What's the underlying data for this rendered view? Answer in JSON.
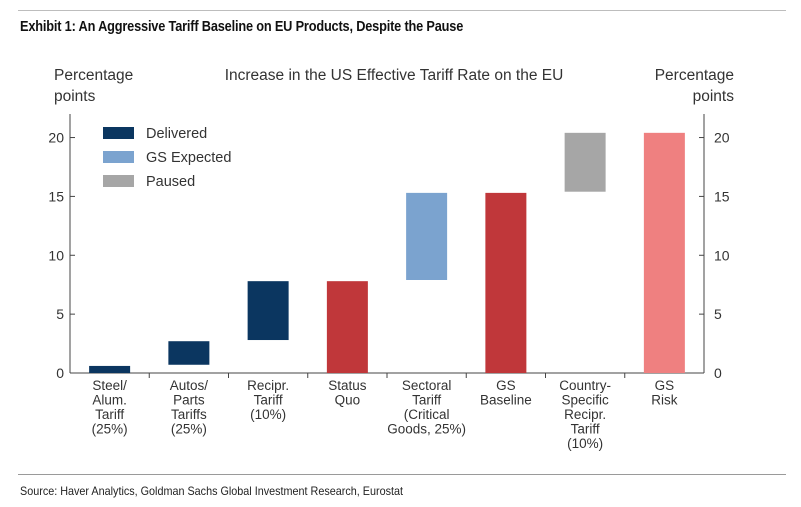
{
  "exhibit_title": "Exhibit 1: An Aggressive Tariff Baseline on EU Products, Despite the Pause",
  "source": "Source: Haver Analytics, Goldman Sachs Global Investment Research, Eurostat",
  "chart_data": {
    "type": "bar",
    "subtype": "waterfall",
    "title": "Increase in the US Effective Tariff Rate on the EU",
    "ylabel_left": [
      "Percentage",
      "points"
    ],
    "ylabel_right": [
      "Percentage",
      "points"
    ],
    "ylim": [
      0,
      22
    ],
    "yticks": [
      0,
      5,
      10,
      15,
      20
    ],
    "grid": false,
    "legend_position": "top-left",
    "legend": [
      {
        "label": "Delivered",
        "color": "#0b3660"
      },
      {
        "label": "GS Expected",
        "color": "#7ba3cf"
      },
      {
        "label": "Paused",
        "color": "#a6a6a6"
      }
    ],
    "categories": [
      [
        "Steel/",
        "Alum.",
        "Tariff",
        "(25%)"
      ],
      [
        "Autos/",
        "Parts",
        "Tariffs",
        "(25%)"
      ],
      [
        "Recipr.",
        "Tariff",
        "(10%)"
      ],
      [
        "Status",
        "Quo"
      ],
      [
        "Sectoral",
        "Tariff",
        "(Critical",
        "Goods, 25%)"
      ],
      [
        "GS",
        "Baseline"
      ],
      [
        "Country-",
        "Specific",
        "Recipr.",
        "Tariff",
        "(10%)"
      ],
      [
        "GS",
        "Risk"
      ]
    ],
    "bars": [
      {
        "start": 0.0,
        "end": 0.6,
        "group": "Delivered",
        "color": "#0b3660"
      },
      {
        "start": 0.7,
        "end": 2.7,
        "group": "Delivered",
        "color": "#0b3660"
      },
      {
        "start": 2.8,
        "end": 7.8,
        "group": "Delivered",
        "color": "#0b3660"
      },
      {
        "start": 0.0,
        "end": 7.8,
        "group": "Total",
        "color": "#c0373a"
      },
      {
        "start": 7.9,
        "end": 15.3,
        "group": "GS Expected",
        "color": "#7ba3cf"
      },
      {
        "start": 0.0,
        "end": 15.3,
        "group": "Total",
        "color": "#c0373a"
      },
      {
        "start": 15.4,
        "end": 20.4,
        "group": "Paused",
        "color": "#a6a6a6"
      },
      {
        "start": 0.0,
        "end": 20.4,
        "group": "Total",
        "color": "#ef8080"
      }
    ]
  }
}
